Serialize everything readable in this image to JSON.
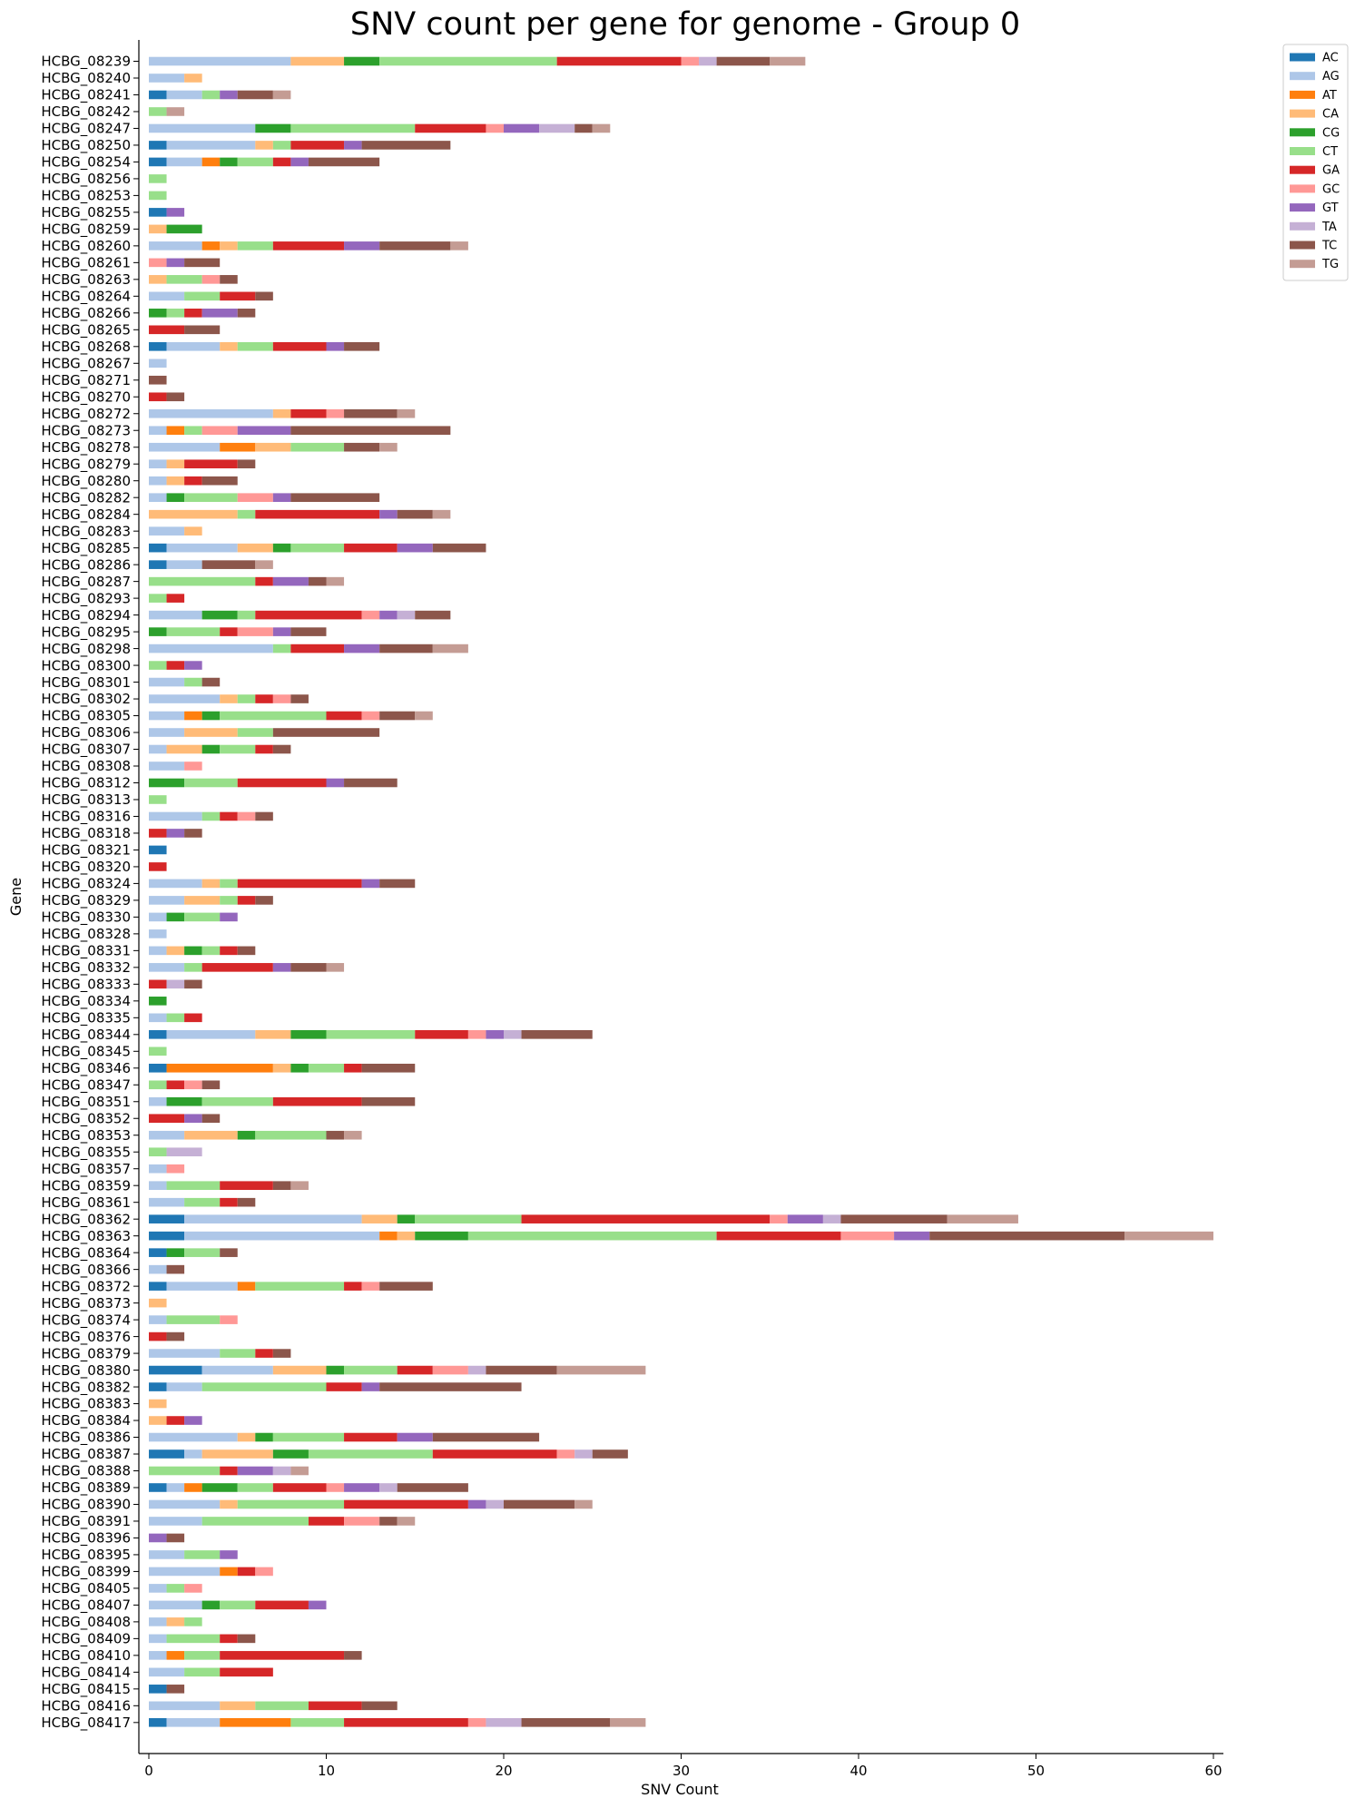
{
  "chart_data": {
    "type": "bar",
    "orientation": "horizontal",
    "stacked": true,
    "title": "SNV count per gene for genome - Group 0",
    "xlabel": "SNV Count",
    "ylabel": "Gene",
    "xlim": [
      0,
      60
    ],
    "xticks": [
      0,
      10,
      20,
      30,
      40,
      50,
      60
    ],
    "legend_position": "top-right (outside plot)",
    "grid": false,
    "colors": {
      "AC": "#1f77b4",
      "AG": "#aec7e8",
      "AT": "#ff7f0e",
      "CA": "#ffbb78",
      "CG": "#2ca02c",
      "CT": "#98df8a",
      "GA": "#d62728",
      "GC": "#ff9896",
      "GT": "#9467bd",
      "TA": "#c5b0d5",
      "TC": "#8c564b",
      "TG": "#c49c94"
    },
    "series_names": [
      "AC",
      "AG",
      "AT",
      "CA",
      "CG",
      "CT",
      "GA",
      "GC",
      "GT",
      "TA",
      "TC",
      "TG"
    ],
    "categories": [
      "HCBG_08239",
      "HCBG_08240",
      "HCBG_08241",
      "HCBG_08242",
      "HCBG_08247",
      "HCBG_08250",
      "HCBG_08254",
      "HCBG_08256",
      "HCBG_08253",
      "HCBG_08255",
      "HCBG_08259",
      "HCBG_08260",
      "HCBG_08261",
      "HCBG_08263",
      "HCBG_08264",
      "HCBG_08266",
      "HCBG_08265",
      "HCBG_08268",
      "HCBG_08267",
      "HCBG_08271",
      "HCBG_08270",
      "HCBG_08272",
      "HCBG_08273",
      "HCBG_08278",
      "HCBG_08279",
      "HCBG_08280",
      "HCBG_08282",
      "HCBG_08284",
      "HCBG_08283",
      "HCBG_08285",
      "HCBG_08286",
      "HCBG_08287",
      "HCBG_08293",
      "HCBG_08294",
      "HCBG_08295",
      "HCBG_08298",
      "HCBG_08300",
      "HCBG_08301",
      "HCBG_08302",
      "HCBG_08305",
      "HCBG_08306",
      "HCBG_08307",
      "HCBG_08308",
      "HCBG_08312",
      "HCBG_08313",
      "HCBG_08316",
      "HCBG_08318",
      "HCBG_08321",
      "HCBG_08320",
      "HCBG_08324",
      "HCBG_08329",
      "HCBG_08330",
      "HCBG_08328",
      "HCBG_08331",
      "HCBG_08332",
      "HCBG_08333",
      "HCBG_08334",
      "HCBG_08335",
      "HCBG_08344",
      "HCBG_08345",
      "HCBG_08346",
      "HCBG_08347",
      "HCBG_08351",
      "HCBG_08352",
      "HCBG_08353",
      "HCBG_08355",
      "HCBG_08357",
      "HCBG_08359",
      "HCBG_08361",
      "HCBG_08362",
      "HCBG_08363",
      "HCBG_08364",
      "HCBG_08366",
      "HCBG_08372",
      "HCBG_08373",
      "HCBG_08374",
      "HCBG_08376",
      "HCBG_08379",
      "HCBG_08380",
      "HCBG_08382",
      "HCBG_08383",
      "HCBG_08384",
      "HCBG_08386",
      "HCBG_08387",
      "HCBG_08388",
      "HCBG_08389",
      "HCBG_08390",
      "HCBG_08391",
      "HCBG_08396",
      "HCBG_08395",
      "HCBG_08399",
      "HCBG_08405",
      "HCBG_08407",
      "HCBG_08408",
      "HCBG_08409",
      "HCBG_08410",
      "HCBG_08414",
      "HCBG_08415",
      "HCBG_08416",
      "HCBG_08417"
    ],
    "values": [
      [
        0,
        8,
        0,
        3,
        2,
        10,
        7,
        1,
        0,
        1,
        3,
        2
      ],
      [
        0,
        2,
        0,
        1,
        0,
        0,
        0,
        0,
        0,
        0,
        0,
        0
      ],
      [
        1,
        2,
        0,
        0,
        0,
        1,
        0,
        0,
        1,
        0,
        2,
        1
      ],
      [
        0,
        0,
        0,
        0,
        0,
        1,
        0,
        0,
        0,
        0,
        0,
        1
      ],
      [
        0,
        6,
        0,
        0,
        2,
        7,
        4,
        1,
        2,
        2,
        1,
        1
      ],
      [
        1,
        5,
        0,
        1,
        0,
        1,
        3,
        0,
        1,
        0,
        5,
        0
      ],
      [
        1,
        2,
        1,
        0,
        1,
        2,
        1,
        0,
        1,
        0,
        4,
        0
      ],
      [
        0,
        0,
        0,
        0,
        0,
        1,
        0,
        0,
        0,
        0,
        0,
        0
      ],
      [
        0,
        0,
        0,
        0,
        0,
        1,
        0,
        0,
        0,
        0,
        0,
        0
      ],
      [
        1,
        0,
        0,
        0,
        0,
        0,
        0,
        0,
        1,
        0,
        0,
        0
      ],
      [
        0,
        0,
        0,
        1,
        2,
        0,
        0,
        0,
        0,
        0,
        0,
        0
      ],
      [
        0,
        3,
        1,
        1,
        0,
        2,
        4,
        0,
        2,
        0,
        4,
        1
      ],
      [
        0,
        0,
        0,
        0,
        0,
        0,
        0,
        1,
        1,
        0,
        2,
        0
      ],
      [
        0,
        0,
        0,
        1,
        0,
        2,
        0,
        1,
        0,
        0,
        1,
        0
      ],
      [
        0,
        2,
        0,
        0,
        0,
        2,
        2,
        0,
        0,
        0,
        1,
        0
      ],
      [
        0,
        0,
        0,
        0,
        1,
        1,
        1,
        0,
        2,
        0,
        1,
        0
      ],
      [
        0,
        0,
        0,
        0,
        0,
        0,
        2,
        0,
        0,
        0,
        2,
        0
      ],
      [
        1,
        3,
        0,
        1,
        0,
        2,
        3,
        0,
        1,
        0,
        2,
        0
      ],
      [
        0,
        1,
        0,
        0,
        0,
        0,
        0,
        0,
        0,
        0,
        0,
        0
      ],
      [
        0,
        0,
        0,
        0,
        0,
        0,
        0,
        0,
        0,
        0,
        1,
        0
      ],
      [
        0,
        0,
        0,
        0,
        0,
        0,
        1,
        0,
        0,
        0,
        1,
        0
      ],
      [
        0,
        7,
        0,
        1,
        0,
        0,
        2,
        1,
        0,
        0,
        3,
        1
      ],
      [
        0,
        1,
        1,
        0,
        0,
        1,
        0,
        2,
        3,
        0,
        9,
        0
      ],
      [
        0,
        4,
        2,
        2,
        0,
        3,
        0,
        0,
        0,
        0,
        2,
        1
      ],
      [
        0,
        1,
        0,
        1,
        0,
        0,
        3,
        0,
        0,
        0,
        1,
        0
      ],
      [
        0,
        1,
        0,
        1,
        0,
        0,
        1,
        0,
        0,
        0,
        2,
        0
      ],
      [
        0,
        1,
        0,
        0,
        1,
        3,
        0,
        2,
        1,
        0,
        5,
        0
      ],
      [
        0,
        0,
        0,
        5,
        0,
        1,
        7,
        0,
        1,
        0,
        2,
        1
      ],
      [
        0,
        2,
        0,
        1,
        0,
        0,
        0,
        0,
        0,
        0,
        0,
        0
      ],
      [
        1,
        4,
        0,
        2,
        1,
        3,
        3,
        0,
        2,
        0,
        3,
        0
      ],
      [
        1,
        2,
        0,
        0,
        0,
        0,
        0,
        0,
        0,
        0,
        3,
        1
      ],
      [
        0,
        0,
        0,
        0,
        0,
        6,
        1,
        0,
        2,
        0,
        1,
        1
      ],
      [
        0,
        0,
        0,
        0,
        0,
        1,
        1,
        0,
        0,
        0,
        0,
        0
      ],
      [
        0,
        3,
        0,
        0,
        2,
        1,
        6,
        1,
        1,
        1,
        2,
        0
      ],
      [
        0,
        0,
        0,
        0,
        1,
        3,
        1,
        2,
        1,
        0,
        2,
        0
      ],
      [
        0,
        7,
        0,
        0,
        0,
        1,
        3,
        0,
        2,
        0,
        3,
        2
      ],
      [
        0,
        0,
        0,
        0,
        0,
        1,
        1,
        0,
        1,
        0,
        0,
        0
      ],
      [
        0,
        2,
        0,
        0,
        0,
        1,
        0,
        0,
        0,
        0,
        1,
        0
      ],
      [
        0,
        4,
        0,
        1,
        0,
        1,
        1,
        1,
        0,
        0,
        1,
        0
      ],
      [
        0,
        2,
        1,
        0,
        1,
        6,
        2,
        1,
        0,
        0,
        2,
        1
      ],
      [
        0,
        2,
        0,
        3,
        0,
        2,
        0,
        0,
        0,
        0,
        6,
        0
      ],
      [
        0,
        1,
        0,
        2,
        1,
        2,
        1,
        0,
        0,
        0,
        1,
        0
      ],
      [
        0,
        2,
        0,
        0,
        0,
        0,
        0,
        1,
        0,
        0,
        0,
        0
      ],
      [
        0,
        0,
        0,
        0,
        2,
        3,
        5,
        0,
        1,
        0,
        3,
        0
      ],
      [
        0,
        0,
        0,
        0,
        0,
        1,
        0,
        0,
        0,
        0,
        0,
        0
      ],
      [
        0,
        3,
        0,
        0,
        0,
        1,
        1,
        1,
        0,
        0,
        1,
        0
      ],
      [
        0,
        0,
        0,
        0,
        0,
        0,
        1,
        0,
        1,
        0,
        1,
        0
      ],
      [
        1,
        0,
        0,
        0,
        0,
        0,
        0,
        0,
        0,
        0,
        0,
        0
      ],
      [
        0,
        0,
        0,
        0,
        0,
        0,
        1,
        0,
        0,
        0,
        0,
        0
      ],
      [
        0,
        3,
        0,
        1,
        0,
        1,
        7,
        0,
        1,
        0,
        2,
        0
      ],
      [
        0,
        2,
        0,
        2,
        0,
        1,
        1,
        0,
        0,
        0,
        1,
        0
      ],
      [
        0,
        1,
        0,
        0,
        1,
        2,
        0,
        0,
        1,
        0,
        0,
        0
      ],
      [
        0,
        1,
        0,
        0,
        0,
        0,
        0,
        0,
        0,
        0,
        0,
        0
      ],
      [
        0,
        1,
        0,
        1,
        1,
        1,
        1,
        0,
        0,
        0,
        1,
        0
      ],
      [
        0,
        2,
        0,
        0,
        0,
        1,
        4,
        0,
        1,
        0,
        2,
        1
      ],
      [
        0,
        0,
        0,
        0,
        0,
        0,
        1,
        0,
        0,
        1,
        1,
        0
      ],
      [
        0,
        0,
        0,
        0,
        1,
        0,
        0,
        0,
        0,
        0,
        0,
        0
      ],
      [
        0,
        1,
        0,
        0,
        0,
        1,
        1,
        0,
        0,
        0,
        0,
        0
      ],
      [
        1,
        5,
        0,
        2,
        2,
        5,
        3,
        1,
        1,
        1,
        4,
        0
      ],
      [
        0,
        0,
        0,
        0,
        0,
        1,
        0,
        0,
        0,
        0,
        0,
        0
      ],
      [
        1,
        0,
        6,
        1,
        1,
        2,
        1,
        0,
        0,
        0,
        3,
        0
      ],
      [
        0,
        0,
        0,
        0,
        0,
        1,
        1,
        1,
        0,
        0,
        1,
        0
      ],
      [
        0,
        1,
        0,
        0,
        2,
        4,
        5,
        0,
        0,
        0,
        3,
        0
      ],
      [
        0,
        0,
        0,
        0,
        0,
        0,
        2,
        0,
        1,
        0,
        1,
        0
      ],
      [
        0,
        2,
        0,
        3,
        1,
        4,
        0,
        0,
        0,
        0,
        1,
        1
      ],
      [
        0,
        0,
        0,
        0,
        0,
        1,
        0,
        0,
        0,
        2,
        0,
        0
      ],
      [
        0,
        1,
        0,
        0,
        0,
        0,
        0,
        1,
        0,
        0,
        0,
        0
      ],
      [
        0,
        1,
        0,
        0,
        0,
        3,
        3,
        0,
        0,
        0,
        1,
        1
      ],
      [
        0,
        2,
        0,
        0,
        0,
        2,
        1,
        0,
        0,
        0,
        1,
        0
      ],
      [
        2,
        10,
        0,
        2,
        1,
        6,
        14,
        1,
        2,
        1,
        6,
        4
      ],
      [
        2,
        11,
        1,
        1,
        3,
        14,
        7,
        3,
        2,
        0,
        11,
        5
      ],
      [
        1,
        0,
        0,
        0,
        1,
        2,
        0,
        0,
        0,
        0,
        1,
        0
      ],
      [
        0,
        1,
        0,
        0,
        0,
        0,
        0,
        0,
        0,
        0,
        1,
        0
      ],
      [
        1,
        4,
        1,
        0,
        0,
        5,
        1,
        1,
        0,
        0,
        3,
        0
      ],
      [
        0,
        0,
        0,
        1,
        0,
        0,
        0,
        0,
        0,
        0,
        0,
        0
      ],
      [
        0,
        1,
        0,
        0,
        0,
        3,
        0,
        1,
        0,
        0,
        0,
        0
      ],
      [
        0,
        0,
        0,
        0,
        0,
        0,
        1,
        0,
        0,
        0,
        1,
        0
      ],
      [
        0,
        4,
        0,
        0,
        0,
        2,
        1,
        0,
        0,
        0,
        1,
        0
      ],
      [
        3,
        4,
        0,
        3,
        1,
        3,
        2,
        2,
        0,
        1,
        4,
        5
      ],
      [
        1,
        2,
        0,
        0,
        0,
        7,
        2,
        0,
        1,
        0,
        8,
        0
      ],
      [
        0,
        0,
        0,
        1,
        0,
        0,
        0,
        0,
        0,
        0,
        0,
        0
      ],
      [
        0,
        0,
        0,
        1,
        0,
        0,
        1,
        0,
        1,
        0,
        0,
        0
      ],
      [
        0,
        5,
        0,
        1,
        1,
        4,
        3,
        0,
        2,
        0,
        6,
        0
      ],
      [
        2,
        1,
        0,
        4,
        2,
        7,
        7,
        1,
        0,
        1,
        2,
        0
      ],
      [
        0,
        0,
        0,
        0,
        0,
        4,
        1,
        0,
        2,
        1,
        0,
        1
      ],
      [
        1,
        1,
        1,
        0,
        2,
        2,
        3,
        1,
        2,
        1,
        4,
        0
      ],
      [
        0,
        4,
        0,
        1,
        0,
        6,
        7,
        0,
        1,
        1,
        4,
        1
      ],
      [
        0,
        3,
        0,
        0,
        0,
        6,
        2,
        2,
        0,
        0,
        1,
        1
      ],
      [
        0,
        0,
        0,
        0,
        0,
        0,
        0,
        0,
        1,
        0,
        1,
        0
      ],
      [
        0,
        2,
        0,
        0,
        0,
        2,
        0,
        0,
        1,
        0,
        0,
        0
      ],
      [
        0,
        4,
        1,
        0,
        0,
        0,
        1,
        1,
        0,
        0,
        0,
        0
      ],
      [
        0,
        1,
        0,
        0,
        0,
        1,
        0,
        1,
        0,
        0,
        0,
        0
      ],
      [
        0,
        3,
        0,
        0,
        1,
        2,
        3,
        0,
        1,
        0,
        0,
        0
      ],
      [
        0,
        1,
        0,
        1,
        0,
        1,
        0,
        0,
        0,
        0,
        0,
        0
      ],
      [
        0,
        1,
        0,
        0,
        0,
        3,
        1,
        0,
        0,
        0,
        1,
        0
      ],
      [
        0,
        1,
        1,
        0,
        0,
        2,
        7,
        0,
        0,
        0,
        1,
        0
      ],
      [
        0,
        2,
        0,
        0,
        0,
        2,
        3,
        0,
        0,
        0,
        0,
        0
      ],
      [
        1,
        0,
        0,
        0,
        0,
        0,
        0,
        0,
        0,
        0,
        1,
        0
      ],
      [
        0,
        4,
        0,
        2,
        0,
        3,
        3,
        0,
        0,
        0,
        2,
        0
      ],
      [
        1,
        3,
        4,
        0,
        0,
        3,
        7,
        1,
        0,
        2,
        5,
        2
      ]
    ]
  }
}
